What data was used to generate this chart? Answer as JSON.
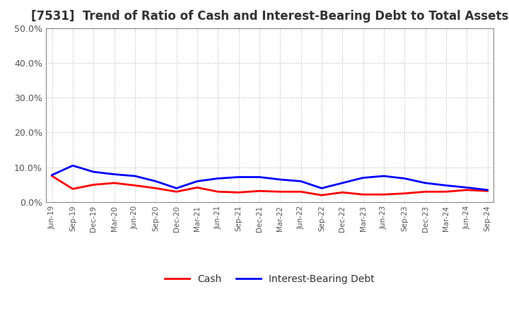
{
  "title": "[7531]  Trend of Ratio of Cash and Interest-Bearing Debt to Total Assets",
  "x_labels": [
    "Jun-19",
    "Sep-19",
    "Dec-19",
    "Mar-20",
    "Jun-20",
    "Sep-20",
    "Dec-20",
    "Mar-21",
    "Jun-21",
    "Sep-21",
    "Dec-21",
    "Mar-22",
    "Jun-22",
    "Sep-22",
    "Dec-22",
    "Mar-23",
    "Jun-23",
    "Sep-23",
    "Dec-23",
    "Mar-24",
    "Jun-24",
    "Sep-24"
  ],
  "cash": [
    0.075,
    0.038,
    0.05,
    0.055,
    0.048,
    0.04,
    0.03,
    0.042,
    0.03,
    0.028,
    0.032,
    0.03,
    0.03,
    0.02,
    0.028,
    0.022,
    0.022,
    0.025,
    0.03,
    0.03,
    0.035,
    0.032
  ],
  "interest_bearing_debt": [
    0.078,
    0.105,
    0.087,
    0.08,
    0.075,
    0.06,
    0.04,
    0.06,
    0.068,
    0.072,
    0.072,
    0.065,
    0.06,
    0.04,
    0.055,
    0.07,
    0.075,
    0.068,
    0.055,
    0.048,
    0.042,
    0.035
  ],
  "cash_color": "#ff0000",
  "debt_color": "#0000ff",
  "ylim": [
    0.0,
    0.5
  ],
  "yticks": [
    0.0,
    0.1,
    0.2,
    0.3,
    0.4,
    0.5
  ],
  "background_color": "#ffffff",
  "grid_color": "#bbbbbb",
  "title_fontsize": 12,
  "legend_cash": "Cash",
  "legend_debt": "Interest-Bearing Debt"
}
